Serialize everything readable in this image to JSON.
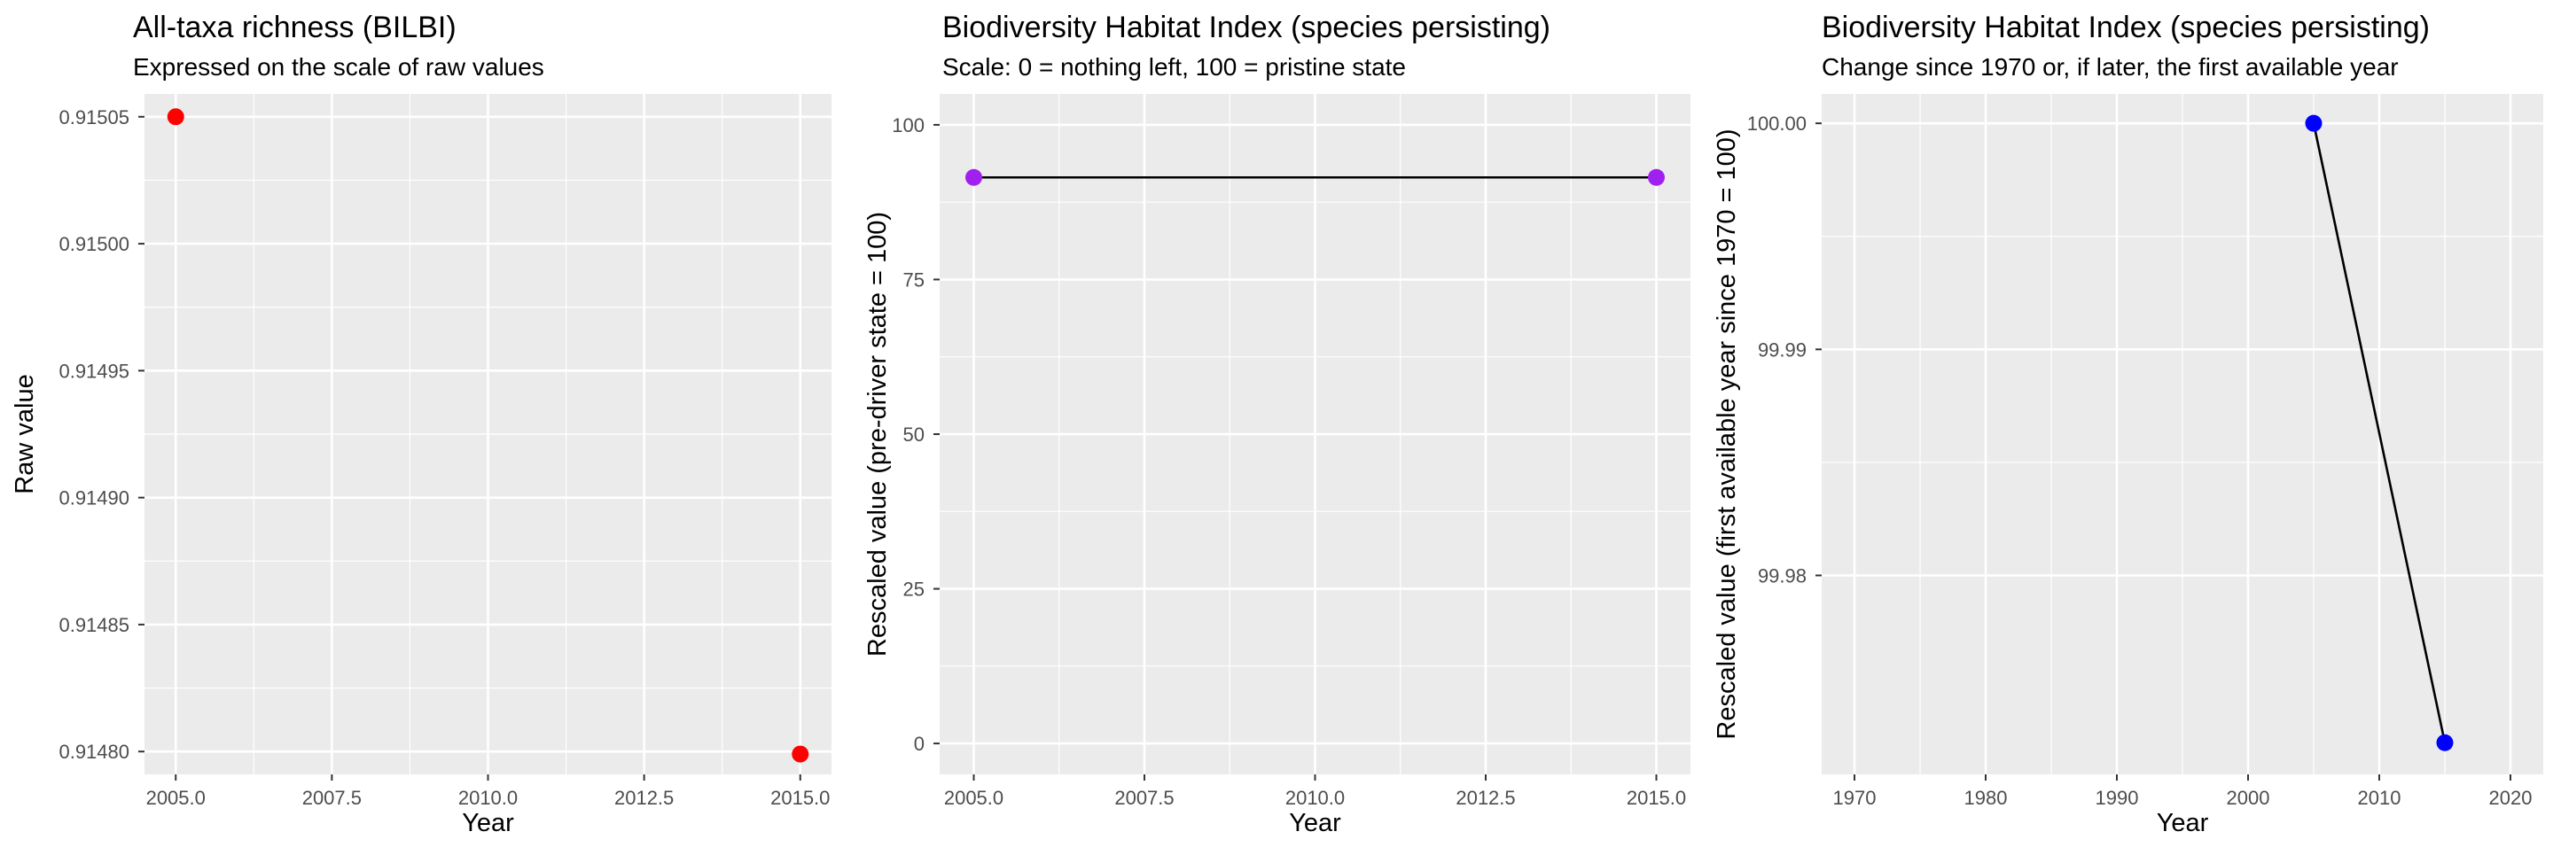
{
  "chart_data": [
    {
      "type": "scatter",
      "title": "All-taxa richness (BILBI)",
      "subtitle": "Expressed on the scale of raw values",
      "xlabel": "Year",
      "ylabel": "Raw value",
      "xlim": [
        2004.5,
        2015.5
      ],
      "ylim": [
        0.914791,
        0.915059
      ],
      "x_ticks": [
        2005.0,
        2007.5,
        2010.0,
        2012.5,
        2015.0
      ],
      "x_tick_labels": [
        "2005.0",
        "2007.5",
        "2010.0",
        "2012.5",
        "2015.0"
      ],
      "y_ticks": [
        0.9148,
        0.91485,
        0.9149,
        0.91495,
        0.915,
        0.91505
      ],
      "y_tick_labels": [
        "0.91480",
        "0.91485",
        "0.91490",
        "0.91495",
        "0.91500",
        "0.91505"
      ],
      "connect_line": false,
      "point_color": "#ff0000",
      "grid": true,
      "points": [
        {
          "x": 2005,
          "y": 0.91505
        },
        {
          "x": 2015,
          "y": 0.914799
        }
      ]
    },
    {
      "type": "line",
      "title": "Biodiversity Habitat Index (species persisting)",
      "subtitle": "Scale: 0 = nothing left, 100 = pristine state",
      "xlabel": "Year",
      "ylabel": "Rescaled value (pre-driver state = 100)",
      "xlim": [
        2004.5,
        2015.5
      ],
      "ylim": [
        -5,
        105
      ],
      "x_ticks": [
        2005.0,
        2007.5,
        2010.0,
        2012.5,
        2015.0
      ],
      "x_tick_labels": [
        "2005.0",
        "2007.5",
        "2010.0",
        "2012.5",
        "2015.0"
      ],
      "y_ticks": [
        0,
        25,
        50,
        75,
        100
      ],
      "y_tick_labels": [
        "0",
        "25",
        "50",
        "75",
        "100"
      ],
      "connect_line": true,
      "point_color": "#a020f0",
      "line_color": "#000000",
      "grid": true,
      "points": [
        {
          "x": 2005,
          "y": 91.5
        },
        {
          "x": 2015,
          "y": 91.5
        }
      ]
    },
    {
      "type": "line",
      "title": "Biodiversity Habitat Index (species persisting)",
      "subtitle": "Change since 1970 or, if later, the first available year",
      "xlabel": "Year",
      "ylabel": "Rescaled value (first available year since 1970 = 100)",
      "xlim": [
        1967.5,
        2022.5
      ],
      "ylim": [
        99.9712,
        100.0013
      ],
      "x_ticks": [
        1970,
        1980,
        1990,
        2000,
        2010,
        2020
      ],
      "x_tick_labels": [
        "1970",
        "1980",
        "1990",
        "2000",
        "2010",
        "2020"
      ],
      "y_ticks": [
        99.98,
        99.99,
        100.0
      ],
      "y_tick_labels": [
        "99.98",
        "99.99",
        "100.00"
      ],
      "connect_line": true,
      "point_color": "#0000ff",
      "line_color": "#000000",
      "grid": true,
      "points": [
        {
          "x": 2005,
          "y": 100.0
        },
        {
          "x": 2015,
          "y": 99.9726
        }
      ]
    }
  ]
}
